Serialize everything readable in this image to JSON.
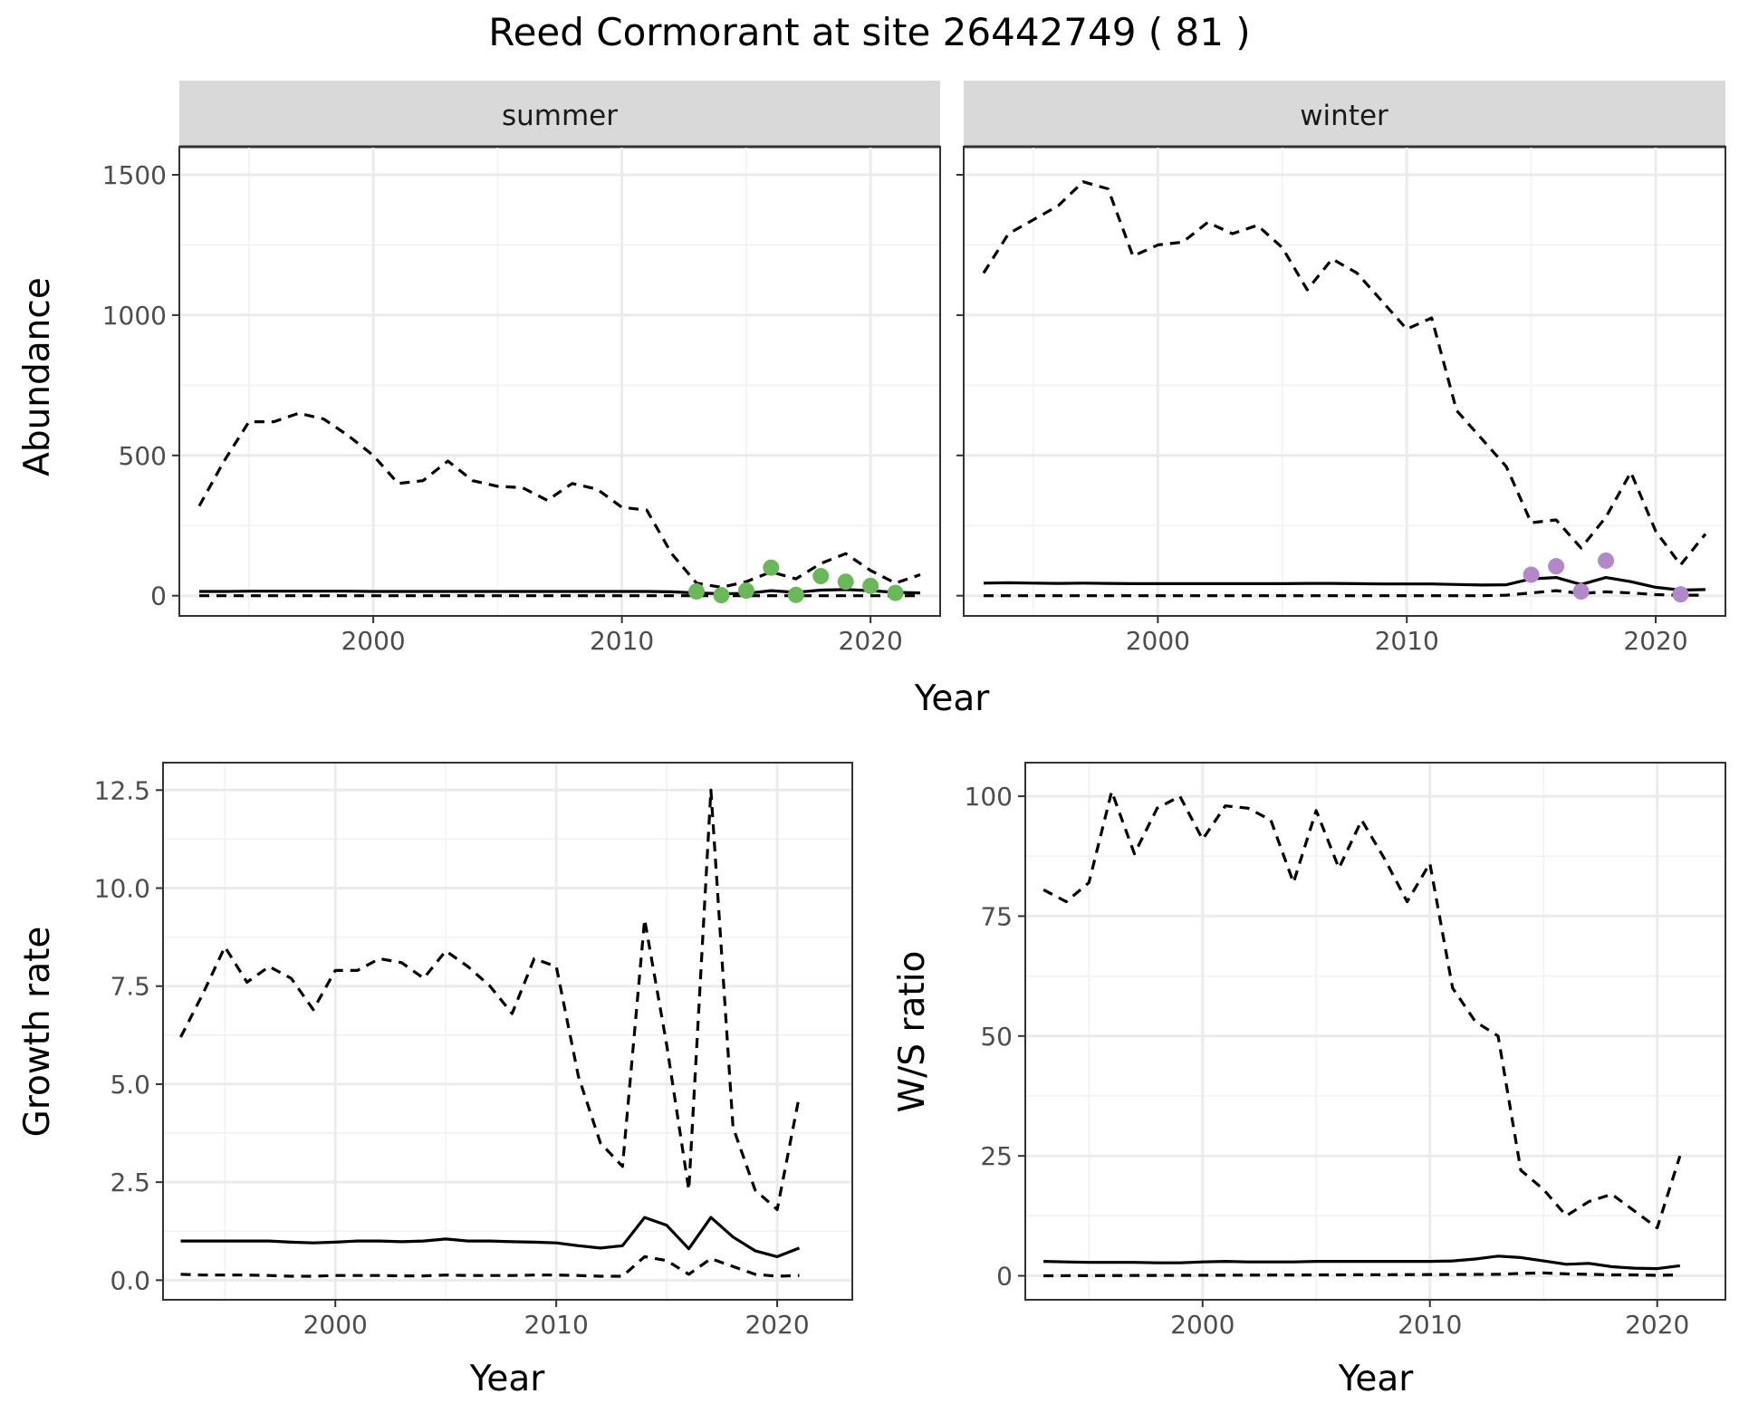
{
  "figure": {
    "title": "Reed Cormorant at site 26442749 ( 81 )"
  },
  "chart_data": [
    {
      "id": "summer",
      "type": "line",
      "strip": "summer",
      "xlabel": "Year",
      "ylabel": "Abundance",
      "xlim": [
        1992.2,
        2022.8
      ],
      "ylim": [
        -72,
        1600
      ],
      "xticks": [
        2000,
        2010,
        2020
      ],
      "yticks": [
        0,
        500,
        1000,
        1500
      ],
      "point_color": "#6ab85a",
      "series": [
        {
          "role": "upper",
          "dash": true,
          "x": [
            1993,
            1994,
            1995,
            1996,
            1997,
            1998,
            1999,
            2000,
            2001,
            2002,
            2003,
            2004,
            2005,
            2006,
            2007,
            2008,
            2009,
            2010,
            2011,
            2012,
            2013,
            2014,
            2015,
            2016,
            2017,
            2018,
            2019,
            2020,
            2021,
            2022
          ],
          "y": [
            320,
            480,
            620,
            620,
            650,
            630,
            570,
            500,
            400,
            410,
            480,
            410,
            390,
            385,
            340,
            400,
            380,
            315,
            305,
            150,
            45,
            30,
            50,
            85,
            60,
            115,
            150,
            90,
            45,
            75
          ]
        },
        {
          "role": "mean",
          "dash": false,
          "x": [
            1993,
            1994,
            1995,
            1996,
            1997,
            1998,
            1999,
            2000,
            2001,
            2002,
            2003,
            2004,
            2005,
            2006,
            2007,
            2008,
            2009,
            2010,
            2011,
            2012,
            2013,
            2014,
            2015,
            2016,
            2017,
            2018,
            2019,
            2020,
            2021,
            2022
          ],
          "y": [
            15,
            15,
            16,
            16,
            16,
            16,
            16,
            15,
            15,
            15,
            15,
            15,
            15,
            15,
            15,
            15,
            15,
            15,
            15,
            14,
            10,
            7,
            8,
            18,
            12,
            20,
            22,
            18,
            12,
            10
          ]
        },
        {
          "role": "lower",
          "dash": true,
          "x": [
            1993,
            2022
          ],
          "y": [
            0,
            0
          ]
        }
      ],
      "points": {
        "x": [
          2013,
          2014,
          2015,
          2016,
          2017,
          2018,
          2019,
          2020,
          2021
        ],
        "y": [
          15,
          2,
          18,
          100,
          3,
          70,
          50,
          35,
          10
        ]
      }
    },
    {
      "id": "winter",
      "type": "line",
      "strip": "winter",
      "xlabel": "Year",
      "ylabel": "Abundance",
      "xlim": [
        1992.2,
        2022.8
      ],
      "ylim": [
        -72,
        1600
      ],
      "xticks": [
        2000,
        2010,
        2020
      ],
      "yticks": [
        0,
        500,
        1000,
        1500
      ],
      "point_color": "#b388c8",
      "series": [
        {
          "role": "upper",
          "dash": true,
          "x": [
            1993,
            1994,
            1995,
            1996,
            1997,
            1998,
            1999,
            2000,
            2001,
            2002,
            2003,
            2004,
            2005,
            2006,
            2007,
            2008,
            2009,
            2010,
            2011,
            2012,
            2013,
            2014,
            2015,
            2016,
            2017,
            2018,
            2019,
            2020,
            2021,
            2022
          ],
          "y": [
            1150,
            1290,
            1340,
            1390,
            1475,
            1450,
            1210,
            1250,
            1260,
            1330,
            1290,
            1320,
            1240,
            1090,
            1200,
            1150,
            1050,
            950,
            990,
            660,
            560,
            460,
            260,
            270,
            170,
            280,
            440,
            230,
            110,
            220
          ]
        },
        {
          "role": "mean",
          "dash": false,
          "x": [
            1993,
            1994,
            1995,
            1996,
            1997,
            1998,
            1999,
            2000,
            2001,
            2002,
            2003,
            2004,
            2005,
            2006,
            2007,
            2008,
            2009,
            2010,
            2011,
            2012,
            2013,
            2014,
            2015,
            2016,
            2017,
            2018,
            2019,
            2020,
            2021,
            2022
          ],
          "y": [
            45,
            46,
            45,
            44,
            45,
            44,
            43,
            43,
            43,
            43,
            43,
            43,
            43,
            44,
            44,
            43,
            42,
            42,
            42,
            40,
            38,
            39,
            60,
            65,
            40,
            65,
            50,
            30,
            20,
            22
          ]
        },
        {
          "role": "lower",
          "dash": true,
          "x": [
            1993,
            2013,
            2014,
            2015,
            2016,
            2017,
            2018,
            2019,
            2020,
            2021,
            2022
          ],
          "y": [
            0,
            0,
            2,
            10,
            18,
            8,
            14,
            10,
            4,
            2,
            2
          ]
        }
      ],
      "points": {
        "x": [
          2015,
          2016,
          2017,
          2018,
          2021
        ],
        "y": [
          75,
          105,
          15,
          125,
          5
        ]
      }
    },
    {
      "id": "growth",
      "type": "line",
      "xlabel": "Year",
      "ylabel": "Growth rate",
      "xlim": [
        1992.2,
        2023.4
      ],
      "ylim": [
        -0.5,
        13.2
      ],
      "xticks": [
        2000,
        2010,
        2020
      ],
      "yticks": [
        0.0,
        2.5,
        5.0,
        7.5,
        10.0,
        12.5
      ],
      "ytick_labels": [
        "0.0",
        "2.5",
        "5.0",
        "7.5",
        "10.0",
        "12.5"
      ],
      "series": [
        {
          "role": "upper",
          "dash": true,
          "x": [
            1993,
            1994,
            1995,
            1996,
            1997,
            1998,
            1999,
            2000,
            2001,
            2002,
            2003,
            2004,
            2005,
            2006,
            2007,
            2008,
            2009,
            2010,
            2011,
            2012,
            2013,
            2014,
            2015,
            2016,
            2017,
            2018,
            2019,
            2020,
            2021
          ],
          "y": [
            6.2,
            7.3,
            8.5,
            7.6,
            8.0,
            7.7,
            6.9,
            7.9,
            7.9,
            8.2,
            8.1,
            7.7,
            8.4,
            8.0,
            7.5,
            6.8,
            8.2,
            8.0,
            5.2,
            3.5,
            2.9,
            9.2,
            6.0,
            2.3,
            12.5,
            3.9,
            2.3,
            1.8,
            4.7
          ]
        },
        {
          "role": "mean",
          "dash": false,
          "x": [
            1993,
            1994,
            1995,
            1996,
            1997,
            1998,
            1999,
            2000,
            2001,
            2002,
            2003,
            2004,
            2005,
            2006,
            2007,
            2008,
            2009,
            2010,
            2011,
            2012,
            2013,
            2014,
            2015,
            2016,
            2017,
            2018,
            2019,
            2020,
            2021
          ],
          "y": [
            1.0,
            1.0,
            1.0,
            1.0,
            1.0,
            0.97,
            0.95,
            0.97,
            1.0,
            1.0,
            0.98,
            1.0,
            1.05,
            1.0,
            1.0,
            0.98,
            0.97,
            0.95,
            0.88,
            0.82,
            0.88,
            1.6,
            1.4,
            0.8,
            1.6,
            1.1,
            0.75,
            0.6,
            0.82
          ]
        },
        {
          "role": "lower",
          "dash": true,
          "x": [
            1993,
            1994,
            1995,
            1996,
            1997,
            1998,
            1999,
            2000,
            2001,
            2002,
            2003,
            2004,
            2005,
            2006,
            2007,
            2008,
            2009,
            2010,
            2011,
            2012,
            2013,
            2014,
            2015,
            2016,
            2017,
            2018,
            2019,
            2020,
            2021
          ],
          "y": [
            0.15,
            0.13,
            0.13,
            0.13,
            0.12,
            0.1,
            0.1,
            0.12,
            0.12,
            0.12,
            0.11,
            0.11,
            0.13,
            0.12,
            0.12,
            0.12,
            0.13,
            0.13,
            0.12,
            0.1,
            0.1,
            0.6,
            0.5,
            0.15,
            0.55,
            0.35,
            0.15,
            0.1,
            0.12
          ]
        }
      ]
    },
    {
      "id": "ratio",
      "type": "line",
      "xlabel": "Year",
      "ylabel": "W/S ratio",
      "xlim": [
        1992.2,
        2023.0
      ],
      "ylim": [
        -5,
        107
      ],
      "xticks": [
        2000,
        2010,
        2020
      ],
      "yticks": [
        0,
        25,
        50,
        75,
        100
      ],
      "series": [
        {
          "role": "upper",
          "dash": true,
          "x": [
            1993,
            1994,
            1995,
            1996,
            1997,
            1998,
            1999,
            2000,
            2001,
            2002,
            2003,
            2004,
            2005,
            2006,
            2007,
            2008,
            2009,
            2010,
            2011,
            2012,
            2013,
            2014,
            2015,
            2016,
            2017,
            2018,
            2019,
            2020,
            2021
          ],
          "y": [
            80.5,
            78,
            82,
            101,
            88,
            97.5,
            100,
            91,
            98,
            97.5,
            95,
            82,
            97,
            85,
            95,
            87,
            78,
            86,
            60,
            53,
            50,
            22,
            18,
            12.5,
            15.5,
            17,
            13.5,
            10,
            25
          ]
        },
        {
          "role": "mean",
          "dash": false,
          "x": [
            1993,
            1994,
            1995,
            1996,
            1997,
            1998,
            1999,
            2000,
            2001,
            2002,
            2003,
            2004,
            2005,
            2006,
            2007,
            2008,
            2009,
            2010,
            2011,
            2012,
            2013,
            2014,
            2015,
            2016,
            2017,
            2018,
            2019,
            2020,
            2021
          ],
          "y": [
            3,
            2.9,
            2.8,
            2.8,
            2.8,
            2.7,
            2.7,
            2.9,
            3,
            2.9,
            2.9,
            2.9,
            3,
            3,
            3,
            3,
            3,
            3,
            3.1,
            3.5,
            4.1,
            3.8,
            3.1,
            2.4,
            2.6,
            1.9,
            1.6,
            1.5,
            2.1
          ]
        },
        {
          "role": "lower",
          "dash": true,
          "x": [
            1993,
            2013,
            2014,
            2015,
            2016,
            2017,
            2018,
            2019,
            2020,
            2021
          ],
          "y": [
            0,
            0.3,
            0.5,
            0.6,
            0.4,
            0.3,
            0.2,
            0.2,
            0.1,
            0.2
          ]
        }
      ]
    }
  ]
}
